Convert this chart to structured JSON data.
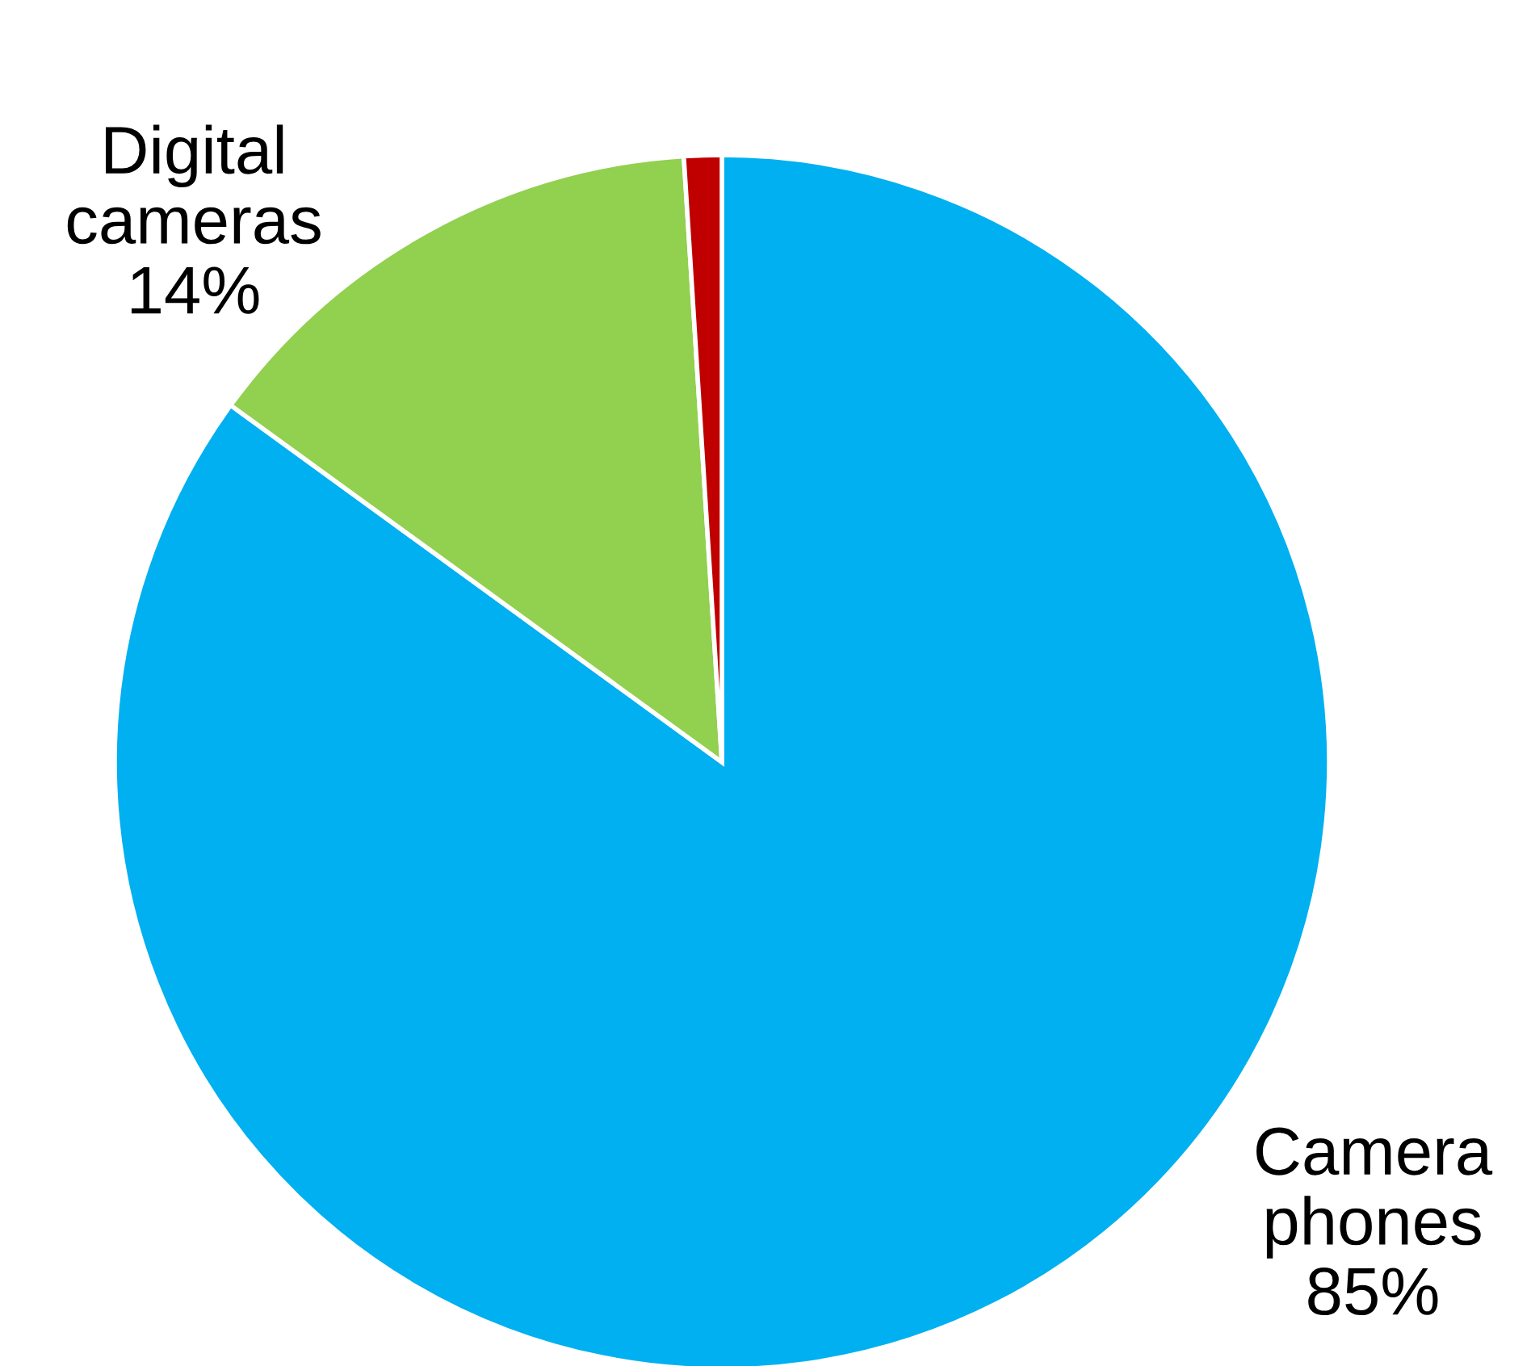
{
  "chart_data": {
    "type": "pie",
    "categories": [
      "Camera\nphones",
      "Digital\ncameras",
      null
    ],
    "values": [
      85,
      14,
      1
    ],
    "colors": [
      "#00b0f0",
      "#92d050",
      "#c00000"
    ],
    "value_labels": [
      "85%",
      "14%",
      null
    ],
    "legend": false
  }
}
